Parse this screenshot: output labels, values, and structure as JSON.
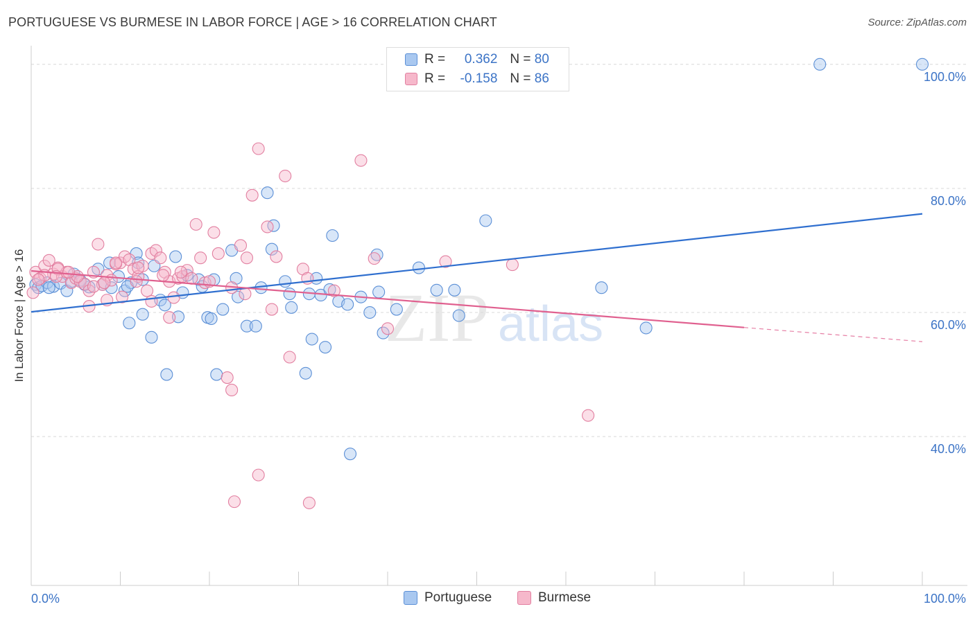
{
  "title": "PORTUGUESE VS BURMESE IN LABOR FORCE | AGE > 16 CORRELATION CHART",
  "source": "Source: ZipAtlas.com",
  "watermark": {
    "zip": "ZIP",
    "atlas": "atlas"
  },
  "colors": {
    "portuguese_fill": "#a9c8f0",
    "portuguese_stroke": "#5b8fd6",
    "portuguese_line": "#2f6fcf",
    "burmese_fill": "#f6b8cb",
    "burmese_stroke": "#e27fa0",
    "burmese_line": "#e0608f",
    "axis_label": "#3b73c6",
    "grid": "#d8d8d8"
  },
  "legend": {
    "rows": [
      {
        "r_label": "R =",
        "r_value": "0.362",
        "n_label": "N =",
        "n_value": "80",
        "series": "Portuguese"
      },
      {
        "r_label": "R =",
        "r_value": "-0.158",
        "n_label": "N =",
        "n_value": "86",
        "series": "Burmese"
      }
    ]
  },
  "bottom_legend": [
    "Portuguese",
    "Burmese"
  ],
  "chart_data": {
    "type": "scatter",
    "title": "PORTUGUESE VS BURMESE IN LABOR FORCE | AGE > 16 CORRELATION CHART",
    "xlabel": "",
    "ylabel": "In Labor Force | Age > 16",
    "xlim": [
      0,
      100
    ],
    "ylim": [
      16,
      103
    ],
    "x_tick_labels": [
      "0.0%",
      "100.0%"
    ],
    "y_ticks": [
      40,
      60,
      80,
      100
    ],
    "y_tick_labels": [
      "40.0%",
      "60.0%",
      "80.0%",
      "100.0%"
    ],
    "grid": "horizontal dashed",
    "legend_position": "top-center",
    "series": [
      {
        "name": "Portuguese",
        "trend": {
          "x": [
            0,
            100
          ],
          "y": [
            60.1,
            75.9
          ],
          "dashed_from": null
        },
        "points": [
          [
            0.5,
            64.5
          ],
          [
            0.8,
            64.0
          ],
          [
            1.2,
            64.3
          ],
          [
            1.8,
            64.8
          ],
          [
            2.5,
            64.2
          ],
          [
            3.3,
            64.7
          ],
          [
            4.0,
            63.5
          ],
          [
            4.8,
            66.2
          ],
          [
            5.5,
            65.2
          ],
          [
            6.5,
            64.1
          ],
          [
            7.5,
            67.0
          ],
          [
            8.0,
            64.5
          ],
          [
            9.0,
            64.0
          ],
          [
            8.8,
            68.0
          ],
          [
            9.8,
            65.8
          ],
          [
            10.5,
            63.5
          ],
          [
            11.2,
            64.8
          ],
          [
            11.8,
            69.5
          ],
          [
            12.5,
            65.3
          ],
          [
            12.0,
            68.0
          ],
          [
            13.8,
            67.5
          ],
          [
            14.5,
            62.0
          ],
          [
            15.0,
            61.2
          ],
          [
            16.2,
            69.0
          ],
          [
            16.5,
            59.3
          ],
          [
            17.0,
            63.2
          ],
          [
            18.8,
            65.3
          ],
          [
            19.2,
            64.2
          ],
          [
            19.8,
            59.2
          ],
          [
            20.5,
            65.3
          ],
          [
            20.2,
            59.0
          ],
          [
            21.5,
            60.5
          ],
          [
            22.5,
            70.0
          ],
          [
            23.0,
            65.5
          ],
          [
            23.2,
            62.5
          ],
          [
            24.2,
            57.8
          ],
          [
            25.2,
            57.8
          ],
          [
            25.8,
            64.0
          ],
          [
            26.5,
            79.3
          ],
          [
            27.0,
            70.2
          ],
          [
            27.2,
            74.0
          ],
          [
            28.5,
            65.0
          ],
          [
            29.0,
            63.0
          ],
          [
            29.2,
            60.8
          ],
          [
            31.2,
            63.0
          ],
          [
            32.0,
            65.5
          ],
          [
            32.5,
            62.8
          ],
          [
            31.5,
            55.7
          ],
          [
            33.5,
            63.7
          ],
          [
            33.8,
            72.4
          ],
          [
            34.5,
            61.8
          ],
          [
            35.5,
            61.3
          ],
          [
            37.0,
            62.5
          ],
          [
            38.0,
            60.0
          ],
          [
            39.0,
            63.3
          ],
          [
            39.5,
            56.7
          ],
          [
            38.8,
            69.3
          ],
          [
            41.0,
            60.5
          ],
          [
            43.5,
            67.2
          ],
          [
            45.5,
            63.6
          ],
          [
            47.5,
            63.6
          ],
          [
            48.0,
            59.5
          ],
          [
            51.0,
            74.8
          ],
          [
            64.0,
            64.0
          ],
          [
            69.0,
            57.5
          ],
          [
            88.5,
            100.0
          ],
          [
            100.0,
            100.0
          ],
          [
            11.0,
            58.3
          ],
          [
            12.5,
            59.7
          ],
          [
            13.5,
            56.0
          ],
          [
            15.2,
            50.0
          ],
          [
            20.8,
            50.0
          ],
          [
            30.8,
            50.2
          ],
          [
            33.0,
            54.4
          ],
          [
            35.8,
            37.2
          ],
          [
            4.5,
            65.0
          ],
          [
            6.0,
            64.5
          ],
          [
            2.0,
            64.0
          ],
          [
            10.8,
            64.2
          ],
          [
            17.5,
            66.0
          ]
        ]
      },
      {
        "name": "Burmese",
        "trend": {
          "x": [
            0,
            100
          ],
          "y": [
            66.7,
            55.3
          ],
          "dashed_from": 80
        },
        "points": [
          [
            0.2,
            63.2
          ],
          [
            0.5,
            66.5
          ],
          [
            1.0,
            65.5
          ],
          [
            1.5,
            67.5
          ],
          [
            2.0,
            68.4
          ],
          [
            2.5,
            66.2
          ],
          [
            3.0,
            67.2
          ],
          [
            3.5,
            65.8
          ],
          [
            4.0,
            66.5
          ],
          [
            4.5,
            64.8
          ],
          [
            5.0,
            65.5
          ],
          [
            5.5,
            65.0
          ],
          [
            6.0,
            64.6
          ],
          [
            6.5,
            63.5
          ],
          [
            7.0,
            66.5
          ],
          [
            7.5,
            71.0
          ],
          [
            8.0,
            64.5
          ],
          [
            8.5,
            66.0
          ],
          [
            9.0,
            65.2
          ],
          [
            9.5,
            67.8
          ],
          [
            10.0,
            68.0
          ],
          [
            10.5,
            69.0
          ],
          [
            11.0,
            68.5
          ],
          [
            11.5,
            67.0
          ],
          [
            12.0,
            65.8
          ],
          [
            12.5,
            67.5
          ],
          [
            13.0,
            63.5
          ],
          [
            13.5,
            69.5
          ],
          [
            14.0,
            70.0
          ],
          [
            14.5,
            68.8
          ],
          [
            15.0,
            66.5
          ],
          [
            15.5,
            65.0
          ],
          [
            16.0,
            62.4
          ],
          [
            16.5,
            65.5
          ],
          [
            17.0,
            65.8
          ],
          [
            17.5,
            66.8
          ],
          [
            18.5,
            74.2
          ],
          [
            19.0,
            68.8
          ],
          [
            19.5,
            64.8
          ],
          [
            20.5,
            72.9
          ],
          [
            21.0,
            69.5
          ],
          [
            22.5,
            64.0
          ],
          [
            23.5,
            70.8
          ],
          [
            24.2,
            68.8
          ],
          [
            24.8,
            78.9
          ],
          [
            25.5,
            86.4
          ],
          [
            26.5,
            73.8
          ],
          [
            27.0,
            60.5
          ],
          [
            27.5,
            69.0
          ],
          [
            28.5,
            82.0
          ],
          [
            30.5,
            67.0
          ],
          [
            31.0,
            65.5
          ],
          [
            34.0,
            63.5
          ],
          [
            37.0,
            84.5
          ],
          [
            38.5,
            68.7
          ],
          [
            40.0,
            57.4
          ],
          [
            46.5,
            68.2
          ],
          [
            54.0,
            67.7
          ],
          [
            62.5,
            43.4
          ],
          [
            25.5,
            33.8
          ],
          [
            22.8,
            29.5
          ],
          [
            31.2,
            29.3
          ],
          [
            22.0,
            49.5
          ],
          [
            22.5,
            47.5
          ],
          [
            29.0,
            52.8
          ],
          [
            13.5,
            61.8
          ],
          [
            15.5,
            59.2
          ],
          [
            6.5,
            61.0
          ],
          [
            8.5,
            62.0
          ],
          [
            9.5,
            68.0
          ],
          [
            12.0,
            67.2
          ],
          [
            18.0,
            65.5
          ],
          [
            3.0,
            67.0
          ],
          [
            1.5,
            66.0
          ],
          [
            5.2,
            65.8
          ],
          [
            7.0,
            64.2
          ],
          [
            10.2,
            62.5
          ],
          [
            11.8,
            65.0
          ],
          [
            14.8,
            66.0
          ],
          [
            2.8,
            65.8
          ],
          [
            24.0,
            63.0
          ],
          [
            20.0,
            65.0
          ],
          [
            16.8,
            66.5
          ],
          [
            4.2,
            66.5
          ],
          [
            8.2,
            64.8
          ],
          [
            0.8,
            65.3
          ]
        ]
      }
    ]
  }
}
